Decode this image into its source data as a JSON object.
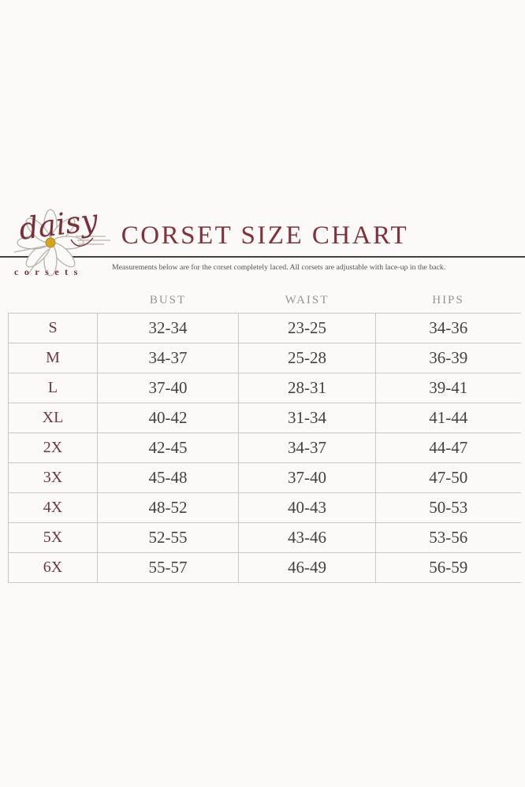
{
  "colors": {
    "accent_maroon": "#7b2f38",
    "title_maroon": "#82313a",
    "header_gray": "#98948b",
    "number_gray": "#45423e",
    "grid_line": "#cbc8c2",
    "divider_dark": "#45413c",
    "daisy_gold": "#d9a31e",
    "sketch_gray": "#b7b3aa",
    "background": "#fbfaf8"
  },
  "logo": {
    "script_text": "daisy",
    "sub_text": "corsets"
  },
  "header": {
    "title": "CORSET SIZE CHART",
    "subtitle": "Measurements below are for the corset completely laced.  All corsets are adjustable with lace-up in the back."
  },
  "chart_data": {
    "type": "table",
    "columns": [
      "BUST",
      "WAIST",
      "HIPS"
    ],
    "rows": [
      {
        "size": "S",
        "bust": "32-34",
        "waist": "23-25",
        "hips": "34-36"
      },
      {
        "size": "M",
        "bust": "34-37",
        "waist": "25-28",
        "hips": "36-39"
      },
      {
        "size": "L",
        "bust": "37-40",
        "waist": "28-31",
        "hips": "39-41"
      },
      {
        "size": "XL",
        "bust": "40-42",
        "waist": "31-34",
        "hips": "41-44"
      },
      {
        "size": "2X",
        "bust": "42-45",
        "waist": "34-37",
        "hips": "44-47"
      },
      {
        "size": "3X",
        "bust": "45-48",
        "waist": "37-40",
        "hips": "47-50"
      },
      {
        "size": "4X",
        "bust": "48-52",
        "waist": "40-43",
        "hips": "50-53"
      },
      {
        "size": "5X",
        "bust": "52-55",
        "waist": "43-46",
        "hips": "53-56"
      },
      {
        "size": "6X",
        "bust": "55-57",
        "waist": "46-49",
        "hips": "56-59"
      }
    ]
  }
}
